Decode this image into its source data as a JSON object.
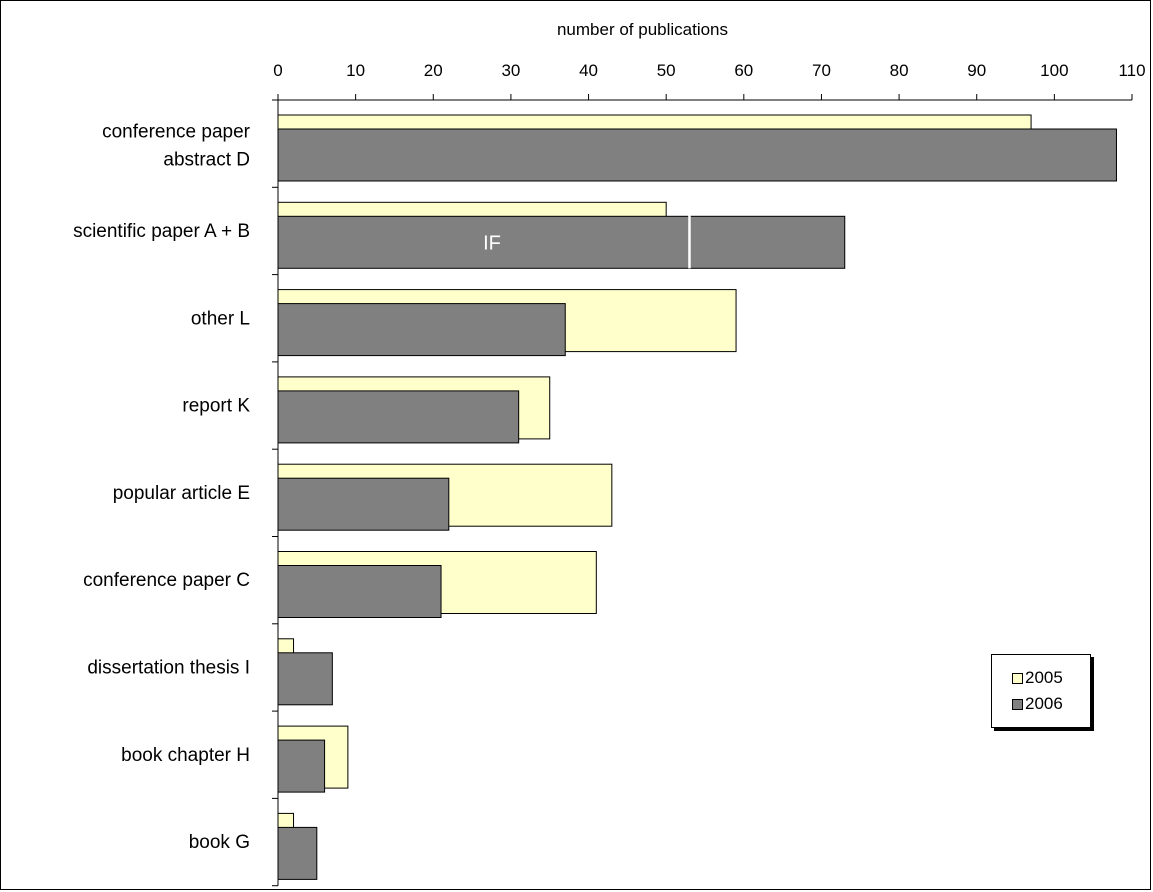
{
  "chart_data": {
    "type": "bar",
    "orientation": "horizontal",
    "xlabel": "number of publications",
    "xlim": [
      0,
      110
    ],
    "x_ticks": [
      0,
      10,
      20,
      30,
      40,
      50,
      60,
      70,
      80,
      90,
      100,
      110
    ],
    "categories": [
      [
        "conference paper",
        "abstract  D"
      ],
      [
        "scientific paper  A + B"
      ],
      [
        "other  L"
      ],
      [
        "report  K"
      ],
      [
        "popular article  E"
      ],
      [
        "conference paper  C"
      ],
      [
        "dissertation thesis  I"
      ],
      [
        "book chapter  H"
      ],
      [
        "book  G"
      ]
    ],
    "series": [
      {
        "name": "2005",
        "color": "#ffffcc",
        "values": [
          97,
          50,
          59,
          35,
          43,
          41,
          2,
          9,
          2
        ]
      },
      {
        "name": "2006",
        "color": "#808080",
        "values": [
          108,
          73,
          37,
          31,
          22,
          21,
          7,
          6,
          5
        ]
      }
    ],
    "annotations": [
      {
        "text": "IF",
        "category_index": 1,
        "series": "2006",
        "marker_value": 53
      }
    ],
    "legend_position": "bottom-right",
    "grid": false
  }
}
